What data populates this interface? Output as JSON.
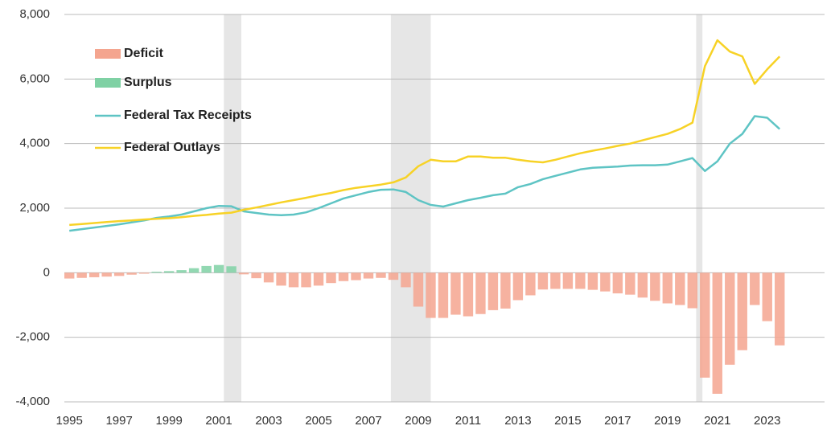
{
  "chart_data": {
    "type": "bar-line",
    "x": [
      1995,
      1995.5,
      1996,
      1996.5,
      1997,
      1997.5,
      1998,
      1998.5,
      1999,
      1999.5,
      2000,
      2000.5,
      2001,
      2001.5,
      2002,
      2002.5,
      2003,
      2003.5,
      2004,
      2004.5,
      2005,
      2005.5,
      2006,
      2006.5,
      2007,
      2007.5,
      2008,
      2008.5,
      2009,
      2009.5,
      2010,
      2010.5,
      2011,
      2011.5,
      2012,
      2012.5,
      2013,
      2013.5,
      2014,
      2014.5,
      2015,
      2015.5,
      2016,
      2016.5,
      2017,
      2017.5,
      2018,
      2018.5,
      2019,
      2019.5,
      2020,
      2020.5,
      2021,
      2021.5,
      2022,
      2022.5,
      2023,
      2023.5
    ],
    "series": [
      {
        "name": "Deficit",
        "kind": "bar",
        "color": "#f4a58f",
        "values": [
          -180,
          -160,
          -140,
          -120,
          -100,
          -60,
          -30,
          null,
          null,
          null,
          null,
          null,
          null,
          null,
          -50,
          -170,
          -300,
          -400,
          -450,
          -450,
          -400,
          -320,
          -260,
          -230,
          -180,
          -160,
          -220,
          -450,
          -1050,
          -1400,
          -1400,
          -1300,
          -1350,
          -1280,
          -1160,
          -1110,
          -850,
          -700,
          -520,
          -500,
          -500,
          -500,
          -530,
          -580,
          -640,
          -680,
          -770,
          -870,
          -950,
          -1000,
          -1100,
          -3250,
          -3750,
          -2850,
          -2400,
          -1000,
          -1500,
          -2250
        ]
      },
      {
        "name": "Surplus",
        "kind": "bar",
        "color": "#7fd1a4",
        "values": [
          null,
          null,
          null,
          null,
          null,
          null,
          null,
          30,
          50,
          80,
          140,
          210,
          240,
          200,
          null,
          null,
          null,
          null,
          null,
          null,
          null,
          null,
          null,
          null,
          null,
          null,
          null,
          null,
          null,
          null,
          null,
          null,
          null,
          null,
          null,
          null,
          null,
          null,
          null,
          null,
          null,
          null,
          null,
          null,
          null,
          null,
          null,
          null,
          null,
          null,
          null,
          null,
          null,
          null,
          null,
          null,
          null,
          null
        ]
      },
      {
        "name": "Federal Tax Receipts",
        "kind": "line",
        "color": "#5ec4c4",
        "values": [
          1300,
          1350,
          1400,
          1450,
          1500,
          1560,
          1620,
          1700,
          1740,
          1800,
          1900,
          2000,
          2070,
          2060,
          1900,
          1850,
          1800,
          1780,
          1800,
          1870,
          2000,
          2150,
          2300,
          2400,
          2500,
          2570,
          2580,
          2500,
          2250,
          2100,
          2050,
          2150,
          2250,
          2320,
          2400,
          2450,
          2650,
          2750,
          2900,
          3000,
          3100,
          3200,
          3250,
          3270,
          3290,
          3320,
          3330,
          3330,
          3350,
          3450,
          3550,
          3150,
          3450,
          4000,
          4300,
          4850,
          4800,
          4450
        ]
      },
      {
        "name": "Federal Outlays",
        "kind": "line",
        "color": "#f7d226",
        "values": [
          1480,
          1510,
          1540,
          1570,
          1600,
          1620,
          1650,
          1670,
          1690,
          1720,
          1760,
          1790,
          1830,
          1860,
          1950,
          2020,
          2100,
          2180,
          2250,
          2320,
          2400,
          2470,
          2560,
          2630,
          2680,
          2730,
          2800,
          2950,
          3300,
          3500,
          3450,
          3450,
          3600,
          3600,
          3560,
          3560,
          3500,
          3450,
          3420,
          3500,
          3600,
          3700,
          3780,
          3850,
          3930,
          4000,
          4100,
          4200,
          4300,
          4450,
          4650,
          6400,
          7200,
          6850,
          6700,
          5850,
          6300,
          6700
        ]
      }
    ],
    "recessions": [
      [
        2001.2,
        2001.9
      ],
      [
        2007.9,
        2009.5
      ],
      [
        2020.15,
        2020.4
      ]
    ],
    "xlim": [
      1994.8,
      2025.3
    ],
    "xticks": [
      1995,
      1997,
      1999,
      2001,
      2003,
      2005,
      2007,
      2009,
      2011,
      2013,
      2015,
      2017,
      2019,
      2021,
      2023
    ],
    "ylim": [
      -4000,
      8000
    ],
    "yticks": [
      {
        "value": -4000,
        "label": "-4,000"
      },
      {
        "value": -2000,
        "label": "-2,000"
      },
      0,
      {
        "value": 2000,
        "label": "2,000"
      },
      {
        "value": 4000,
        "label": "4,000"
      },
      {
        "value": 6000,
        "label": "6,000"
      },
      {
        "value": 8000,
        "label": "8,000"
      }
    ],
    "grid": true,
    "legend": "top-left"
  }
}
